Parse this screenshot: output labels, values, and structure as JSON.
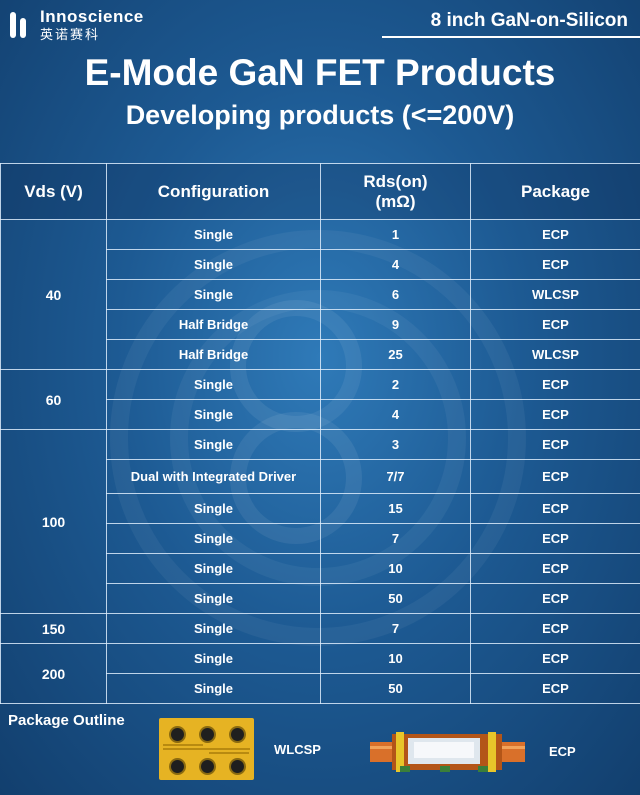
{
  "header": {
    "brand_en": "Innoscience",
    "brand_cn": "英诺赛科",
    "tagline": "8 inch GaN-on-Silicon"
  },
  "title": "E-Mode GaN FET Products",
  "subtitle": "Developing products (<=200V)",
  "table": {
    "headers": [
      "Vds (V)",
      "Configuration",
      "Rds(on)",
      "(mΩ)",
      "Package"
    ],
    "groups": [
      {
        "vds": "40",
        "rows": [
          {
            "config": "Single",
            "rds": "1",
            "package": "ECP"
          },
          {
            "config": "Single",
            "rds": "4",
            "package": "ECP"
          },
          {
            "config": "Single",
            "rds": "6",
            "package": "WLCSP"
          },
          {
            "config": "Half Bridge",
            "rds": "9",
            "package": "ECP"
          },
          {
            "config": "Half Bridge",
            "rds": "25",
            "package": "WLCSP"
          }
        ]
      },
      {
        "vds": "60",
        "rows": [
          {
            "config": "Single",
            "rds": "2",
            "package": "ECP"
          },
          {
            "config": "Single",
            "rds": "4",
            "package": "ECP"
          }
        ]
      },
      {
        "vds": "100",
        "rows": [
          {
            "config": "Single",
            "rds": "3",
            "package": "ECP"
          },
          {
            "config": "Dual with Integrated Driver",
            "rds": "7/7",
            "package": "ECP"
          },
          {
            "config": "Single",
            "rds": "15",
            "package": "ECP"
          },
          {
            "config": "Single",
            "rds": "7",
            "package": "ECP"
          },
          {
            "config": "Single",
            "rds": "10",
            "package": "ECP"
          },
          {
            "config": "Single",
            "rds": "50",
            "package": "ECP"
          }
        ]
      },
      {
        "vds": "150",
        "rows": [
          {
            "config": "Single",
            "rds": "7",
            "package": "ECP"
          }
        ]
      },
      {
        "vds": "200",
        "rows": [
          {
            "config": "Single",
            "rds": "10",
            "package": "ECP"
          },
          {
            "config": "Single",
            "rds": "50",
            "package": "ECP"
          }
        ]
      }
    ]
  },
  "package_outline": {
    "label": "Package Outline",
    "wlcsp_caption": "WLCSP",
    "ecp_caption": "ECP"
  },
  "colors": {
    "background": "#1d5a93",
    "wlcsp_gold": "#e6b323",
    "ecp_copper": "#d9702a"
  }
}
